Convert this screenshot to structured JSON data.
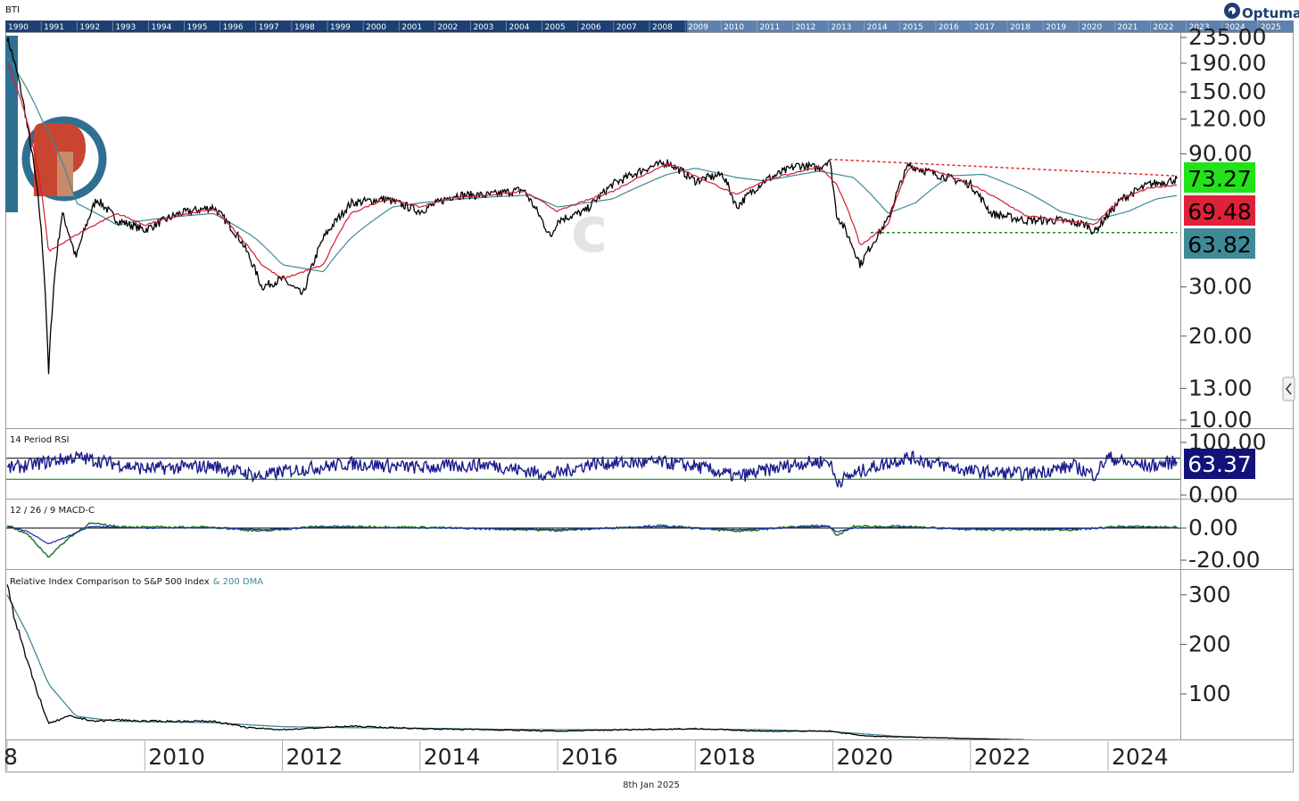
{
  "symbol": "BTI",
  "brand": "Optuma",
  "footer_date": "8th Jan 2025",
  "colors": {
    "price": "#000000",
    "ma_fast": "#d11e36",
    "ma_slow": "#3f8a97",
    "rsi": "#1a1a8c",
    "macd": "#1f7a2b",
    "macd_signal": "#1f2aa8",
    "resistance": "#e02020",
    "support": "#1a8a1a",
    "badge_price": "#22e21a",
    "badge_fast": "#e0213a",
    "badge_slow": "#3f8a97",
    "badge_rsi": "#12127a",
    "timeline_bg": "#1d3f73"
  },
  "timeline_years": [
    "1990",
    "1991",
    "1992",
    "1993",
    "1994",
    "1995",
    "1996",
    "1997",
    "1998",
    "1999",
    "2000",
    "2001",
    "2002",
    "2003",
    "2004",
    "2005",
    "2006",
    "2007",
    "2008",
    "2009",
    "2010",
    "2011",
    "2012",
    "2013",
    "2014",
    "2015",
    "2016",
    "2017",
    "2018",
    "2019",
    "2020",
    "2021",
    "2022",
    "2023",
    "2024",
    "2025"
  ],
  "chart_data": [
    {
      "type": "line",
      "panel": "price",
      "title": "BTI",
      "y_scale": "log",
      "y_ticks": [
        "235.00",
        "190.00",
        "150.00",
        "120.00",
        "90.00",
        "30.00",
        "20.00",
        "13.00",
        "10.00"
      ],
      "x_ticks": [
        "8",
        "2010",
        "2012",
        "2014",
        "2016",
        "2018",
        "2020",
        "2022",
        "2024"
      ],
      "series": [
        {
          "name": "",
          "role": "price",
          "x": [
            2008.0,
            2008.3,
            2008.6,
            2008.8,
            2009.0,
            2009.3,
            2009.6,
            2010.0,
            2010.5,
            2011.0,
            2011.4,
            2011.7,
            2012.0,
            2012.3,
            2012.6,
            2013.0,
            2013.5,
            2014.0,
            2014.5,
            2015.0,
            2015.5,
            2015.9,
            2016.0,
            2016.4,
            2016.8,
            2017.3,
            2017.6,
            2018.0,
            2018.4,
            2018.6,
            2019.0,
            2019.5,
            2019.8,
            2019.95,
            2020.05,
            2020.4,
            2020.8,
            2021.1,
            2021.5,
            2022.0,
            2022.3,
            2022.8,
            2023.3,
            2023.7,
            2023.8,
            2024.2,
            2024.6,
            2024.9,
            2025.0
          ],
          "y": [
            235,
            110,
            14,
            55,
            38,
            62,
            52,
            48,
            55,
            58,
            44,
            30,
            32,
            28,
            45,
            60,
            62,
            56,
            64,
            64,
            67,
            45,
            52,
            56,
            70,
            80,
            84,
            72,
            76,
            58,
            72,
            82,
            80,
            86,
            55,
            36,
            52,
            82,
            76,
            70,
            55,
            52,
            52,
            50,
            47,
            62,
            70,
            72,
            73.27
          ]
        },
        {
          "name": "",
          "role": "fast-ma",
          "x": [
            2008.0,
            2008.6,
            2009.0,
            2009.6,
            2010.0,
            2010.5,
            2011.0,
            2011.7,
            2012.0,
            2012.6,
            2013.0,
            2013.5,
            2014.0,
            2014.5,
            2015.0,
            2015.5,
            2016.0,
            2016.8,
            2017.6,
            2018.0,
            2018.6,
            2019.0,
            2019.8,
            2020.05,
            2020.4,
            2020.8,
            2021.1,
            2021.5,
            2022.0,
            2022.8,
            2023.3,
            2023.8,
            2024.2,
            2024.6,
            2025.0
          ],
          "y": [
            190,
            40,
            46,
            55,
            50,
            54,
            57,
            36,
            32,
            36,
            55,
            62,
            58,
            63,
            64,
            66,
            56,
            66,
            83,
            75,
            64,
            72,
            81,
            70,
            42,
            50,
            80,
            78,
            70,
            54,
            52,
            50,
            62,
            68,
            69.48
          ]
        },
        {
          "name": "",
          "role": "slow-ma",
          "x": [
            2008.0,
            2008.5,
            2009.0,
            2009.6,
            2010.0,
            2010.6,
            2011.0,
            2011.6,
            2012.0,
            2012.6,
            2013.0,
            2013.6,
            2014.0,
            2014.6,
            2015.0,
            2015.6,
            2016.0,
            2016.8,
            2017.6,
            2018.0,
            2018.6,
            2019.0,
            2019.8,
            2020.3,
            2020.8,
            2021.2,
            2021.7,
            2022.2,
            2022.8,
            2023.3,
            2023.8,
            2024.3,
            2024.7,
            2025.0
          ],
          "y": [
            200,
            120,
            60,
            50,
            52,
            54,
            55,
            45,
            36,
            34,
            45,
            58,
            60,
            62,
            63,
            64,
            58,
            62,
            76,
            80,
            74,
            72,
            78,
            74,
            55,
            60,
            75,
            76,
            66,
            56,
            52,
            56,
            62,
            63.82
          ]
        }
      ],
      "resistance_line": {
        "x": [
          2019.95,
          2025.0
        ],
        "y": [
          86,
          75
        ]
      },
      "support_line": {
        "x": [
          2020.55,
          2025.0
        ],
        "y": [
          47,
          47
        ]
      },
      "last_values": {
        "price": "73.27",
        "fast_ma": "69.48",
        "slow_ma": "63.82"
      }
    },
    {
      "type": "line",
      "panel": "rsi",
      "title": "14 Period RSI",
      "y_ticks": [
        "100.00",
        "0.00"
      ],
      "upper_band": 70,
      "lower_band": 30,
      "ylim": [
        0,
        100
      ],
      "series": [
        {
          "name": "",
          "x": [
            2008.0,
            2009.0,
            2010.0,
            2011.0,
            2011.7,
            2012.0,
            2013.0,
            2014.0,
            2015.0,
            2015.9,
            2016.5,
            2017.5,
            2018.0,
            2018.6,
            2019.5,
            2019.95,
            2020.05,
            2020.5,
            2021.1,
            2022.0,
            2022.8,
            2023.5,
            2023.8,
            2024.0,
            2024.3,
            2024.6,
            2025.0
          ],
          "y": [
            50,
            72,
            50,
            55,
            35,
            45,
            60,
            52,
            58,
            38,
            60,
            62,
            55,
            35,
            60,
            65,
            25,
            50,
            72,
            45,
            40,
            55,
            38,
            72,
            60,
            55,
            63.37
          ]
        }
      ],
      "last_value": "63.37"
    },
    {
      "type": "line",
      "panel": "macd",
      "title": "12 / 26 / 9 MACD-C",
      "y_ticks": [
        "0.00",
        "-20.00"
      ],
      "ylim": [
        -25,
        10
      ],
      "series": [
        {
          "name": "",
          "role": "macd",
          "x": [
            2008.0,
            2008.3,
            2008.6,
            2008.9,
            2009.2,
            2009.6,
            2010.0,
            2011.0,
            2011.7,
            2012.5,
            2014.0,
            2016.0,
            2017.5,
            2018.6,
            2019.5,
            2019.95,
            2020.05,
            2020.3,
            2021.0,
            2022.0,
            2023.5,
            2024.2,
            2025.0
          ],
          "y": [
            2,
            -4,
            -18,
            -6,
            3,
            1,
            0.5,
            0.5,
            -2,
            1,
            0.5,
            -1.5,
            1.5,
            -2,
            1,
            1.5,
            -5,
            1,
            1,
            -1,
            -1,
            1,
            0.5
          ]
        },
        {
          "name": "",
          "role": "signal",
          "x": [
            2008.0,
            2008.3,
            2008.6,
            2008.9,
            2009.2,
            2009.6,
            2010.0,
            2011.0,
            2011.7,
            2012.5,
            2014.0,
            2016.0,
            2017.5,
            2018.6,
            2019.5,
            2019.95,
            2020.05,
            2020.3,
            2021.0,
            2022.0,
            2023.5,
            2024.2,
            2025.0
          ],
          "y": [
            1,
            -2,
            -10,
            -5,
            1,
            0.5,
            0,
            0.3,
            -1,
            0.5,
            0.2,
            -1,
            1,
            -1,
            0.5,
            1,
            -2.5,
            0,
            0.5,
            -0.5,
            -0.5,
            0.5,
            0.3
          ]
        }
      ]
    },
    {
      "type": "line",
      "panel": "relative",
      "title": "Relative Index Comparison to S&P 500 Index",
      "title_suffix": "& 200 DMA",
      "y_ticks": [
        "300",
        "200",
        "100"
      ],
      "ylim": [
        0,
        340
      ],
      "series": [
        {
          "name": "",
          "role": "ratio",
          "x": [
            2008.0,
            2008.1,
            2008.3,
            2008.6,
            2008.9,
            2009.3,
            2009.6,
            2010.0,
            2011.0,
            2011.5,
            2012.0,
            2013.0,
            2014.0,
            2015.0,
            2016.0,
            2017.0,
            2018.0,
            2019.0,
            2019.95,
            2020.5,
            2022.0,
            2023.5,
            2025.0
          ],
          "y": [
            330,
            260,
            160,
            40,
            55,
            45,
            48,
            45,
            45,
            32,
            28,
            35,
            30,
            28,
            25,
            28,
            30,
            25,
            25,
            15,
            10,
            5,
            5
          ]
        },
        {
          "name": "",
          "role": "dma",
          "x": [
            2008.0,
            2008.3,
            2008.6,
            2009.0,
            2009.6,
            2010.0,
            2011.0,
            2012.0,
            2013.0,
            2014.0,
            2015.0,
            2016.0,
            2017.0,
            2018.0,
            2019.0,
            2020.0,
            2021.0,
            2022.0,
            2023.0,
            2024.0,
            2025.0
          ],
          "y": [
            300,
            220,
            120,
            55,
            45,
            44,
            42,
            34,
            32,
            31,
            29,
            28,
            28,
            29,
            28,
            24,
            14,
            10,
            7,
            6,
            6
          ]
        }
      ]
    }
  ]
}
